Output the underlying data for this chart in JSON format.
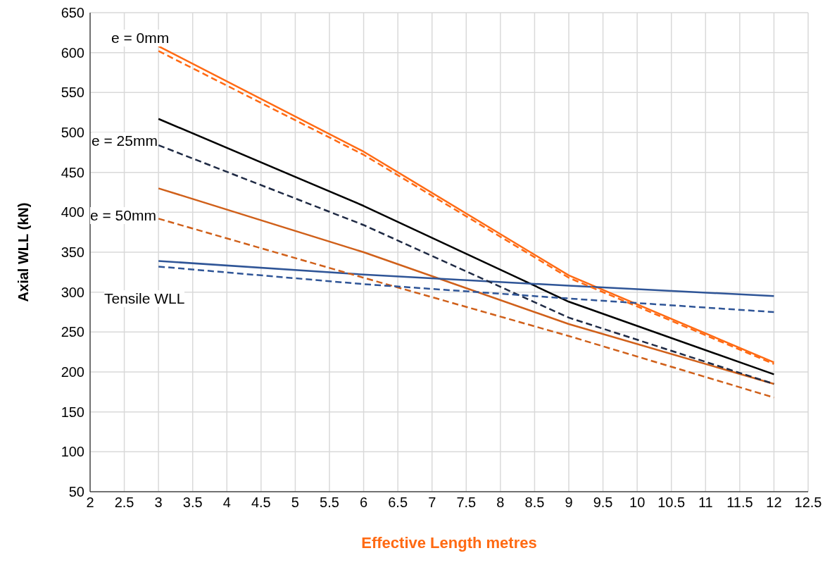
{
  "chart_data": {
    "type": "line",
    "xlabel": "Effective Length metres",
    "ylabel": "Axial WLL (kN)",
    "x": [
      3,
      6,
      9,
      12
    ],
    "series": [
      {
        "color": "#ff6a13",
        "line_style": "solid",
        "values": [
          608,
          476,
          321,
          212
        ]
      },
      {
        "color": "#ff6a13",
        "line_style": "dashed",
        "values": [
          602,
          472,
          318,
          210
        ]
      },
      {
        "color": "#000000",
        "line_style": "solid",
        "values": [
          517,
          408,
          288,
          197
        ]
      },
      {
        "color": "#1f2a44",
        "line_style": "dashed",
        "values": [
          484,
          384,
          268,
          185
        ]
      },
      {
        "color": "#d0601a",
        "line_style": "solid",
        "values": [
          430,
          350,
          260,
          185
        ]
      },
      {
        "color": "#d0601a",
        "line_style": "dashed",
        "values": [
          392,
          318,
          245,
          168
        ]
      },
      {
        "color": "#2f5597",
        "line_style": "solid",
        "values": [
          339,
          322,
          308,
          295
        ]
      },
      {
        "color": "#2f5597",
        "line_style": "dashed",
        "values": [
          332,
          310,
          292,
          275
        ]
      }
    ],
    "annotations": [
      "e = 0mm",
      "e = 25mm",
      "e = 50mm",
      "Tensile WLL"
    ],
    "xlim": [
      2,
      12.5
    ],
    "xticks": [
      2,
      2.5,
      3,
      3.5,
      4,
      4.5,
      5,
      5.5,
      6,
      6.5,
      7,
      7.5,
      8,
      8.5,
      9,
      9.5,
      10,
      10.5,
      11,
      11.5,
      12,
      12.5
    ],
    "ylim": [
      50,
      650
    ],
    "yticks": [
      50,
      100,
      150,
      200,
      250,
      300,
      350,
      400,
      450,
      500,
      550,
      600,
      650
    ],
    "grid": true,
    "legend": false,
    "marker": "none"
  }
}
